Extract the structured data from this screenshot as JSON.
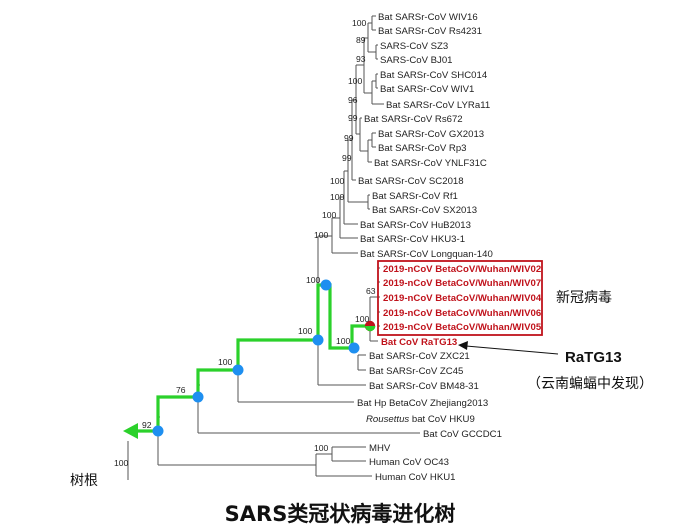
{
  "colors": {
    "highlight": "#c0121b",
    "path": "#2bd12b",
    "node": "#1e8ff0"
  },
  "title": "SARS类冠状病毒进化树",
  "root_label": "树根",
  "group_label": "新冠病毒",
  "ratg13_label": "RaTG13",
  "ratg13_note": "（云南蝙蝠中发现）",
  "leaves": [
    "Bat SARSr-CoV WIV16",
    "Bat SARSr-CoV Rs4231",
    "SARS-CoV SZ3",
    "SARS-CoV BJ01",
    "Bat SARSr-CoV SHC014",
    "Bat SARSr-CoV WIV1",
    "Bat SARSr-CoV LYRa11",
    "Bat SARSr-CoV Rs672",
    "Bat SARSr-CoV GX2013",
    "Bat SARSr-CoV Rp3",
    "Bat SARSr-CoV YNLF31C",
    "Bat SARSr-CoV SC2018",
    "Bat SARSr-CoV Rf1",
    "Bat SARSr-CoV SX2013",
    "Bat SARSr-CoV HuB2013",
    "Bat SARSr-CoV HKU3-1",
    "Bat SARSr-CoV Longquan-140",
    "2019-nCoV BetaCoV/Wuhan/WIV02",
    "2019-nCoV BetaCoV/Wuhan/WIV07",
    "2019-nCoV BetaCoV/Wuhan/WIV04",
    "2019-nCoV BetaCoV/Wuhan/WIV06",
    "2019-nCoV BetaCoV/Wuhan/WIV05",
    "Bat CoV RaTG13",
    "Bat SARSr-CoV ZXC21",
    "Bat SARSr-CoV ZC45",
    "Bat SARSr-CoV BM48-31",
    "Bat Hp BetaCoV Zhejiang2013",
    "bat CoV HKU9",
    "Bat CoV GCCDC1",
    "MHV",
    "Human CoV OC43",
    "Human CoV HKU1"
  ],
  "hku9_prefix": "Rousettus",
  "bootstrap": [
    "100",
    "89",
    "93",
    "100",
    "96",
    "99",
    "99",
    "99",
    "100",
    "100",
    "100",
    "100",
    "63",
    "100",
    "100",
    "100",
    "100",
    "100",
    "76",
    "92",
    "100",
    "100"
  ]
}
